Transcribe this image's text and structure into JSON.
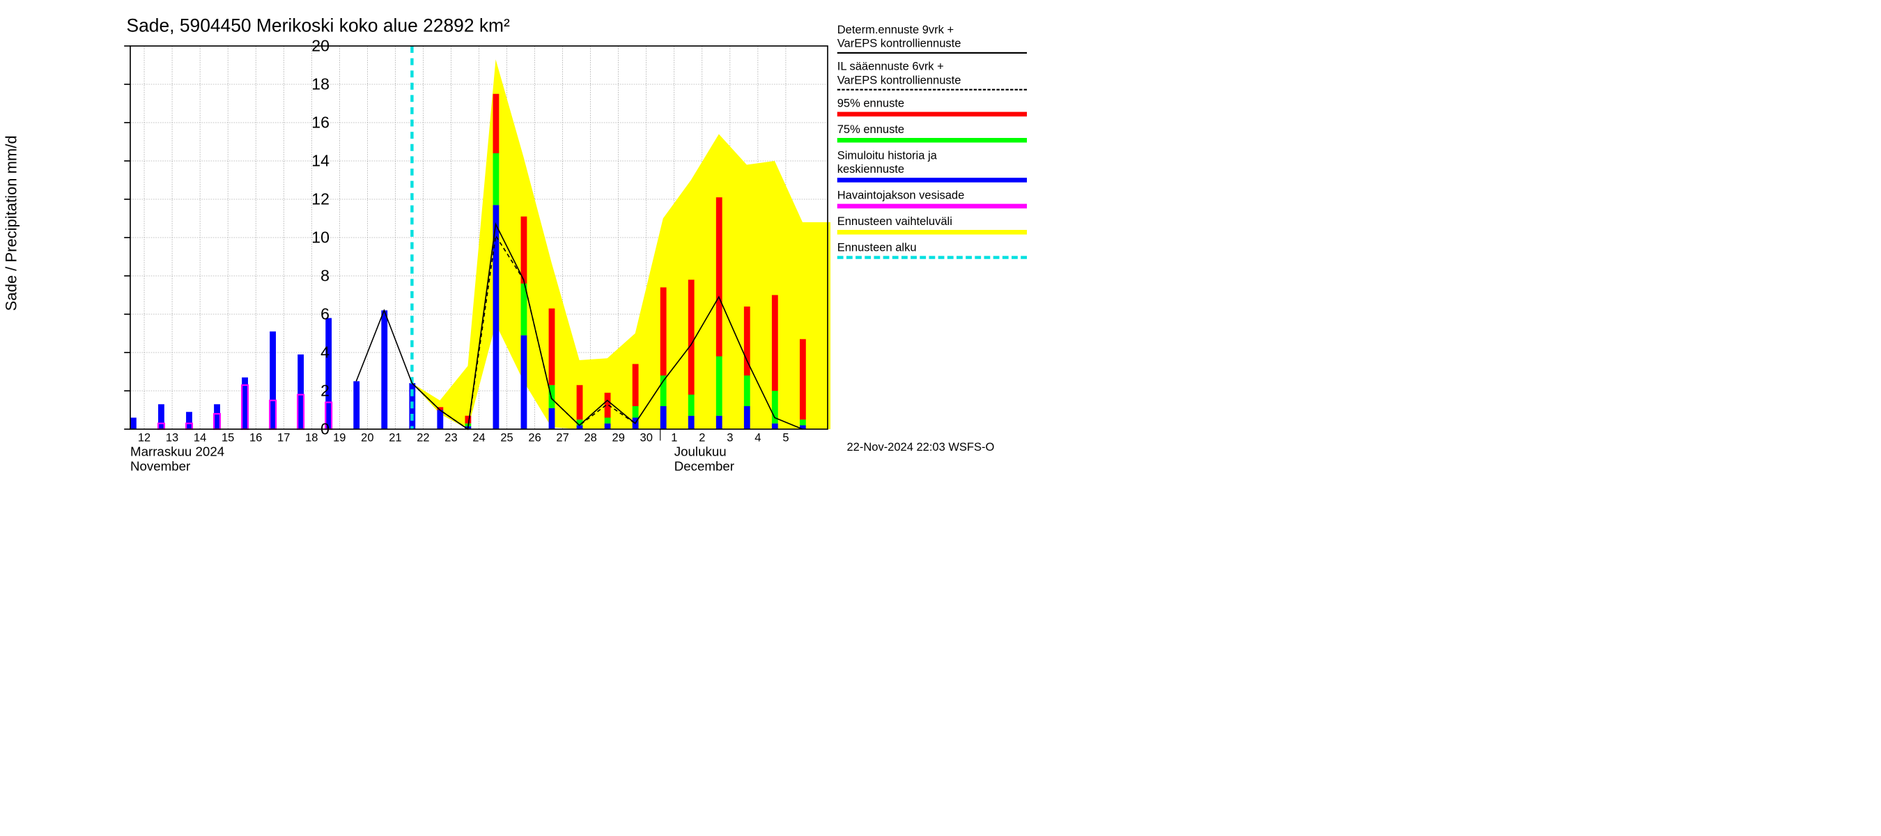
{
  "title": "Sade, 5904450 Merikoski koko alue 22892 km²",
  "ylabel": "Sade / Precipitation   mm/d",
  "footer": "22-Nov-2024 22:03 WSFS-O",
  "month_labels": [
    {
      "fi": "Marraskuu 2024",
      "en": "November",
      "x": 0
    },
    {
      "fi": "Joulukuu",
      "en": "December",
      "x": 19.5
    }
  ],
  "chart": {
    "type": "bar+line+area",
    "background": "#ffffff",
    "grid_color": "#888888",
    "axis_color": "#000000",
    "xlim": [
      0,
      25
    ],
    "ylim": [
      0,
      20
    ],
    "yticks": [
      0,
      2,
      4,
      6,
      8,
      10,
      12,
      14,
      16,
      18,
      20
    ],
    "xticks": [
      {
        "pos": 0.5,
        "label": "12"
      },
      {
        "pos": 1.5,
        "label": "13"
      },
      {
        "pos": 2.5,
        "label": "14"
      },
      {
        "pos": 3.5,
        "label": "15"
      },
      {
        "pos": 4.5,
        "label": "16"
      },
      {
        "pos": 5.5,
        "label": "17"
      },
      {
        "pos": 6.5,
        "label": "18"
      },
      {
        "pos": 7.5,
        "label": "19"
      },
      {
        "pos": 8.5,
        "label": "20"
      },
      {
        "pos": 9.5,
        "label": "21"
      },
      {
        "pos": 10.5,
        "label": "22"
      },
      {
        "pos": 11.5,
        "label": "23"
      },
      {
        "pos": 12.5,
        "label": "24"
      },
      {
        "pos": 13.5,
        "label": "25"
      },
      {
        "pos": 14.5,
        "label": "26"
      },
      {
        "pos": 15.5,
        "label": "27"
      },
      {
        "pos": 16.5,
        "label": "28"
      },
      {
        "pos": 17.5,
        "label": "29"
      },
      {
        "pos": 18.5,
        "label": "30"
      },
      {
        "pos": 19.5,
        "label": "1"
      },
      {
        "pos": 20.5,
        "label": "2"
      },
      {
        "pos": 21.5,
        "label": "3"
      },
      {
        "pos": 22.5,
        "label": "4"
      },
      {
        "pos": 23.5,
        "label": "5"
      }
    ],
    "bar_width": 0.22,
    "bars": [
      {
        "x": 0,
        "blue": 0.6,
        "green": 0,
        "red": 0,
        "magenta": 0
      },
      {
        "x": 1,
        "blue": 1.3,
        "green": 0,
        "red": 0,
        "magenta": 0.3
      },
      {
        "x": 2,
        "blue": 0.9,
        "green": 0,
        "red": 0,
        "magenta": 0.3
      },
      {
        "x": 3,
        "blue": 1.3,
        "green": 0,
        "red": 0,
        "magenta": 0.8
      },
      {
        "x": 4,
        "blue": 2.7,
        "green": 0,
        "red": 0,
        "magenta": 2.3
      },
      {
        "x": 5,
        "blue": 5.1,
        "green": 0,
        "red": 0,
        "magenta": 1.5
      },
      {
        "x": 6,
        "blue": 3.9,
        "green": 0,
        "red": 0,
        "magenta": 1.8
      },
      {
        "x": 7,
        "blue": 5.8,
        "green": 0,
        "red": 0,
        "magenta": 1.4
      },
      {
        "x": 8,
        "blue": 2.5,
        "green": 0,
        "red": 0,
        "magenta": 0
      },
      {
        "x": 9,
        "blue": 6.2,
        "green": 0,
        "red": 0,
        "magenta": 0
      },
      {
        "x": 10,
        "blue": 2.4,
        "green": 0,
        "red": 0,
        "magenta": 0
      },
      {
        "x": 11,
        "blue": 1.0,
        "green": 0,
        "red": 0.15,
        "magenta": 0
      },
      {
        "x": 12,
        "blue": 0.15,
        "green": 0.15,
        "red": 0.4,
        "magenta": 0
      },
      {
        "x": 13,
        "blue": 11.7,
        "green": 2.7,
        "red": 3.1,
        "magenta": 0
      },
      {
        "x": 14,
        "blue": 4.9,
        "green": 2.7,
        "red": 3.5,
        "magenta": 0
      },
      {
        "x": 15,
        "blue": 1.1,
        "green": 1.2,
        "red": 4.0,
        "magenta": 0
      },
      {
        "x": 16,
        "blue": 0.2,
        "green": 0.3,
        "red": 1.8,
        "magenta": 0
      },
      {
        "x": 17,
        "blue": 0.3,
        "green": 0.3,
        "red": 1.3,
        "magenta": 0
      },
      {
        "x": 18,
        "blue": 0.6,
        "green": 0.6,
        "red": 2.2,
        "magenta": 0
      },
      {
        "x": 19,
        "blue": 1.2,
        "green": 1.6,
        "red": 4.6,
        "magenta": 0
      },
      {
        "x": 20,
        "blue": 0.7,
        "green": 1.1,
        "red": 6.0,
        "magenta": 0
      },
      {
        "x": 21,
        "blue": 0.7,
        "green": 3.1,
        "red": 8.3,
        "magenta": 0
      },
      {
        "x": 22,
        "blue": 1.2,
        "green": 1.6,
        "red": 3.6,
        "magenta": 0
      },
      {
        "x": 23,
        "blue": 0.3,
        "green": 1.7,
        "red": 5.0,
        "magenta": 0
      },
      {
        "x": 24,
        "blue": 0.2,
        "green": 0.3,
        "red": 4.2,
        "magenta": 0
      }
    ],
    "yellow_area": {
      "color": "#ffff00",
      "points_hi": [
        {
          "x": 10,
          "y": 2.4
        },
        {
          "x": 11,
          "y": 1.5
        },
        {
          "x": 12,
          "y": 3.3
        },
        {
          "x": 13,
          "y": 19.3
        },
        {
          "x": 14,
          "y": 14.2
        },
        {
          "x": 15,
          "y": 8.7
        },
        {
          "x": 16,
          "y": 3.6
        },
        {
          "x": 17,
          "y": 3.7
        },
        {
          "x": 18,
          "y": 5.0
        },
        {
          "x": 19,
          "y": 11.0
        },
        {
          "x": 20,
          "y": 13.0
        },
        {
          "x": 21,
          "y": 15.4
        },
        {
          "x": 22,
          "y": 13.8
        },
        {
          "x": 23,
          "y": 14.0
        },
        {
          "x": 24,
          "y": 10.8
        },
        {
          "x": 25,
          "y": 10.8
        }
      ],
      "points_lo": [
        {
          "x": 10,
          "y": 2.4
        },
        {
          "x": 11,
          "y": 0.8
        },
        {
          "x": 12,
          "y": 0.0
        },
        {
          "x": 13,
          "y": 5.5
        },
        {
          "x": 14,
          "y": 2.5
        },
        {
          "x": 15,
          "y": 0.1
        },
        {
          "x": 16,
          "y": 0.0
        },
        {
          "x": 17,
          "y": 0.0
        },
        {
          "x": 18,
          "y": 0.0
        },
        {
          "x": 19,
          "y": 0.0
        },
        {
          "x": 20,
          "y": 0.0
        },
        {
          "x": 21,
          "y": 0.0
        },
        {
          "x": 22,
          "y": 0.0
        },
        {
          "x": 23,
          "y": 0.0
        },
        {
          "x": 24,
          "y": 0.0
        },
        {
          "x": 25,
          "y": 0.0
        }
      ]
    },
    "solid_line": {
      "color": "#000000",
      "width": 3,
      "points": [
        {
          "x": 8,
          "y": 2.5
        },
        {
          "x": 9,
          "y": 6.2
        },
        {
          "x": 10,
          "y": 2.4
        },
        {
          "x": 11,
          "y": 1.0
        },
        {
          "x": 12,
          "y": 0.0
        },
        {
          "x": 13,
          "y": 10.7
        },
        {
          "x": 14,
          "y": 7.8
        },
        {
          "x": 15,
          "y": 1.6
        },
        {
          "x": 16,
          "y": 0.2
        },
        {
          "x": 17,
          "y": 1.5
        },
        {
          "x": 18,
          "y": 0.3
        },
        {
          "x": 19,
          "y": 2.5
        },
        {
          "x": 20,
          "y": 4.4
        },
        {
          "x": 21,
          "y": 6.9
        },
        {
          "x": 22,
          "y": 3.6
        },
        {
          "x": 23,
          "y": 0.6
        },
        {
          "x": 24,
          "y": 0.0
        }
      ]
    },
    "dashed_line": {
      "color": "#000000",
      "width": 3,
      "points": [
        {
          "x": 10,
          "y": 2.4
        },
        {
          "x": 11,
          "y": 1.0
        },
        {
          "x": 12,
          "y": 0.0
        },
        {
          "x": 13,
          "y": 10.1
        },
        {
          "x": 14,
          "y": 7.8
        },
        {
          "x": 15,
          "y": 1.6
        },
        {
          "x": 16,
          "y": 0.2
        },
        {
          "x": 17,
          "y": 1.3
        },
        {
          "x": 18,
          "y": 0.3
        }
      ]
    },
    "forecast_start_x": 10,
    "forecast_start_color": "#00e0e0",
    "colors": {
      "blue": "#0000ff",
      "green": "#00ff00",
      "red": "#ff0000",
      "magenta": "#ff00ff",
      "yellow": "#ffff00",
      "cyan": "#00e0e0"
    }
  },
  "legend": [
    {
      "label": "Determ.ennuste 9vrk +\nVarEPS kontrolliennuste",
      "type": "solid",
      "color": "#000000"
    },
    {
      "label": "IL sääennuste 6vrk  +\n VarEPS kontrolliennuste",
      "type": "dashed",
      "color": "#000000"
    },
    {
      "label": "95% ennuste",
      "type": "box",
      "color": "#ff0000"
    },
    {
      "label": "75% ennuste",
      "type": "box",
      "color": "#00ff00"
    },
    {
      "label": "Simuloitu historia ja\nkeskiennuste",
      "type": "box",
      "color": "#0000ff"
    },
    {
      "label": "Havaintojakson vesisade",
      "type": "box",
      "color": "#ff00ff"
    },
    {
      "label": "Ennusteen vaihteluväli",
      "type": "box",
      "color": "#ffff00"
    },
    {
      "label": "Ennusteen alku",
      "type": "cyan-dashed",
      "color": "#00e0e0"
    }
  ]
}
